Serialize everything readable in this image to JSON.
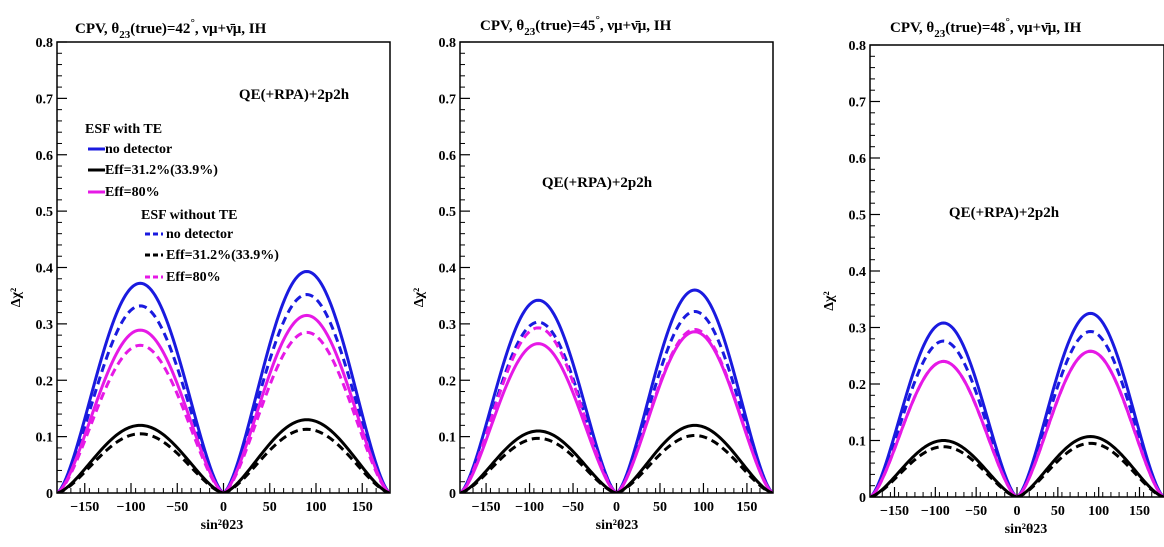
{
  "chart_data": [
    {
      "type": "line",
      "title": "CPV,  θ23(true)=42°,  νμ+ν̄μ, IH",
      "title_main": "CPV,  θ",
      "title_sub": "23",
      "title_rest": "(true)=42",
      "title_deg": "°",
      "title_tail": ",  νμ+ν̄μ, IH",
      "model_label": "QE(+RPA)+2p2h",
      "xlabel": "sin²θ23",
      "ylabel": "Δχ²",
      "xlim": [
        -180,
        180
      ],
      "ylim": [
        0,
        0.8
      ],
      "xticks": [
        "−150",
        "−100",
        "−50",
        "0",
        "50",
        "100",
        "150"
      ],
      "yticks": [
        "0",
        "0.1",
        "0.2",
        "0.3",
        "0.4",
        "0.5",
        "0.6",
        "0.7",
        "0.8"
      ],
      "legend": {
        "header_with": "ESF with TE",
        "header_without": "ESF without TE",
        "entries_with": [
          "no detector",
          "Eff=31.2%(33.9%)",
          "Eff=80%"
        ],
        "entries_without": [
          "no detector",
          "Eff=31.2%(33.9%)",
          "Eff=80%"
        ]
      },
      "series": [
        {
          "name": "no detector",
          "group": "ESF with TE",
          "color": "#1a1adf",
          "dash": "solid",
          "peak_left": 0.372,
          "peak_right": 0.393
        },
        {
          "name": "no detector",
          "group": "ESF without TE",
          "color": "#1a1adf",
          "dash": "dashed",
          "peak_left": 0.332,
          "peak_right": 0.352
        },
        {
          "name": "Eff=80%",
          "group": "ESF with TE",
          "color": "#e619e6",
          "dash": "solid",
          "peak_left": 0.289,
          "peak_right": 0.315
        },
        {
          "name": "Eff=80%",
          "group": "ESF without TE",
          "color": "#e619e6",
          "dash": "dashed",
          "peak_left": 0.262,
          "peak_right": 0.285
        },
        {
          "name": "Eff=31.2%(33.9%)",
          "group": "ESF with TE",
          "color": "#000000",
          "dash": "solid",
          "peak_left": 0.12,
          "peak_right": 0.13
        },
        {
          "name": "Eff=31.2%(33.9%)",
          "group": "ESF without TE",
          "color": "#000000",
          "dash": "dashed",
          "peak_left": 0.105,
          "peak_right": 0.113
        }
      ]
    },
    {
      "type": "line",
      "title": "CPV,  θ23(true)=45°,  νμ+ν̄μ, IH",
      "title_main": "CPV,  θ",
      "title_sub": "23",
      "title_rest": "(true)=45",
      "title_deg": "°",
      "title_tail": ",  νμ+ν̄μ, IH",
      "model_label": "QE(+RPA)+2p2h",
      "xlabel": "sin²θ23",
      "ylabel": "Δχ²",
      "xlim": [
        -180,
        180
      ],
      "ylim": [
        0,
        0.8
      ],
      "xticks": [
        "−150",
        "−100",
        "−50",
        "0",
        "50",
        "100",
        "150"
      ],
      "yticks": [
        "0",
        "0.1",
        "0.2",
        "0.3",
        "0.4",
        "0.5",
        "0.6",
        "0.7",
        "0.8"
      ],
      "series": [
        {
          "name": "no detector",
          "group": "ESF with TE",
          "color": "#1a1adf",
          "dash": "solid",
          "peak_left": 0.342,
          "peak_right": 0.36
        },
        {
          "name": "no detector",
          "group": "ESF without TE",
          "color": "#1a1adf",
          "dash": "dashed",
          "peak_left": 0.303,
          "peak_right": 0.322
        },
        {
          "name": "Eff=80%",
          "group": "ESF with TE",
          "color": "#e619e6",
          "dash": "solid",
          "peak_left": 0.265,
          "peak_right": 0.286
        },
        {
          "name": "Eff=80%",
          "group": "ESF without TE",
          "color": "#e619e6",
          "dash": "dashed",
          "peak_left": 0.293,
          "peak_right": 0.29
        },
        {
          "name": "Eff=31.2%(33.9%)",
          "group": "ESF with TE",
          "color": "#000000",
          "dash": "solid",
          "peak_left": 0.11,
          "peak_right": 0.12
        },
        {
          "name": "Eff=31.2%(33.9%)",
          "group": "ESF without TE",
          "color": "#000000",
          "dash": "dashed",
          "peak_left": 0.097,
          "peak_right": 0.102
        }
      ]
    },
    {
      "type": "line",
      "title": "CPV,  θ23(true)=48°,  νμ+ν̄μ, IH",
      "title_main": "CPV,  θ",
      "title_sub": "23",
      "title_rest": "(true)=48",
      "title_deg": "°",
      "title_tail": ",  νμ+ν̄μ, IH",
      "model_label": "QE(+RPA)+2p2h",
      "xlabel": "sin²θ23",
      "ylabel": "Δχ²",
      "xlim": [
        -180,
        180
      ],
      "ylim": [
        0,
        0.8
      ],
      "xticks": [
        "−150",
        "−100",
        "−50",
        "0",
        "50",
        "100",
        "150"
      ],
      "yticks": [
        "0",
        "0.1",
        "0.2",
        "0.3",
        "0.4",
        "0.5",
        "0.6",
        "0.7",
        "0.8"
      ],
      "series": [
        {
          "name": "no detector",
          "group": "ESF with TE",
          "color": "#1a1adf",
          "dash": "solid",
          "peak_left": 0.308,
          "peak_right": 0.325
        },
        {
          "name": "no detector",
          "group": "ESF without TE",
          "color": "#1a1adf",
          "dash": "dashed",
          "peak_left": 0.276,
          "peak_right": 0.293
        },
        {
          "name": "Eff=80%",
          "group": "ESF with TE",
          "color": "#e619e6",
          "dash": "solid",
          "peak_left": 0.24,
          "peak_right": 0.258
        },
        {
          "name": "Eff=80%",
          "group": "ESF without TE",
          "color": "#e619e6",
          "dash": "dashed",
          "peak_left": 0.24,
          "peak_right": 0.258
        },
        {
          "name": "Eff=31.2%(33.9%)",
          "group": "ESF with TE",
          "color": "#000000",
          "dash": "solid",
          "peak_left": 0.1,
          "peak_right": 0.107
        },
        {
          "name": "Eff=31.2%(33.9%)",
          "group": "ESF without TE",
          "color": "#000000",
          "dash": "dashed",
          "peak_left": 0.089,
          "peak_right": 0.095
        }
      ]
    }
  ]
}
